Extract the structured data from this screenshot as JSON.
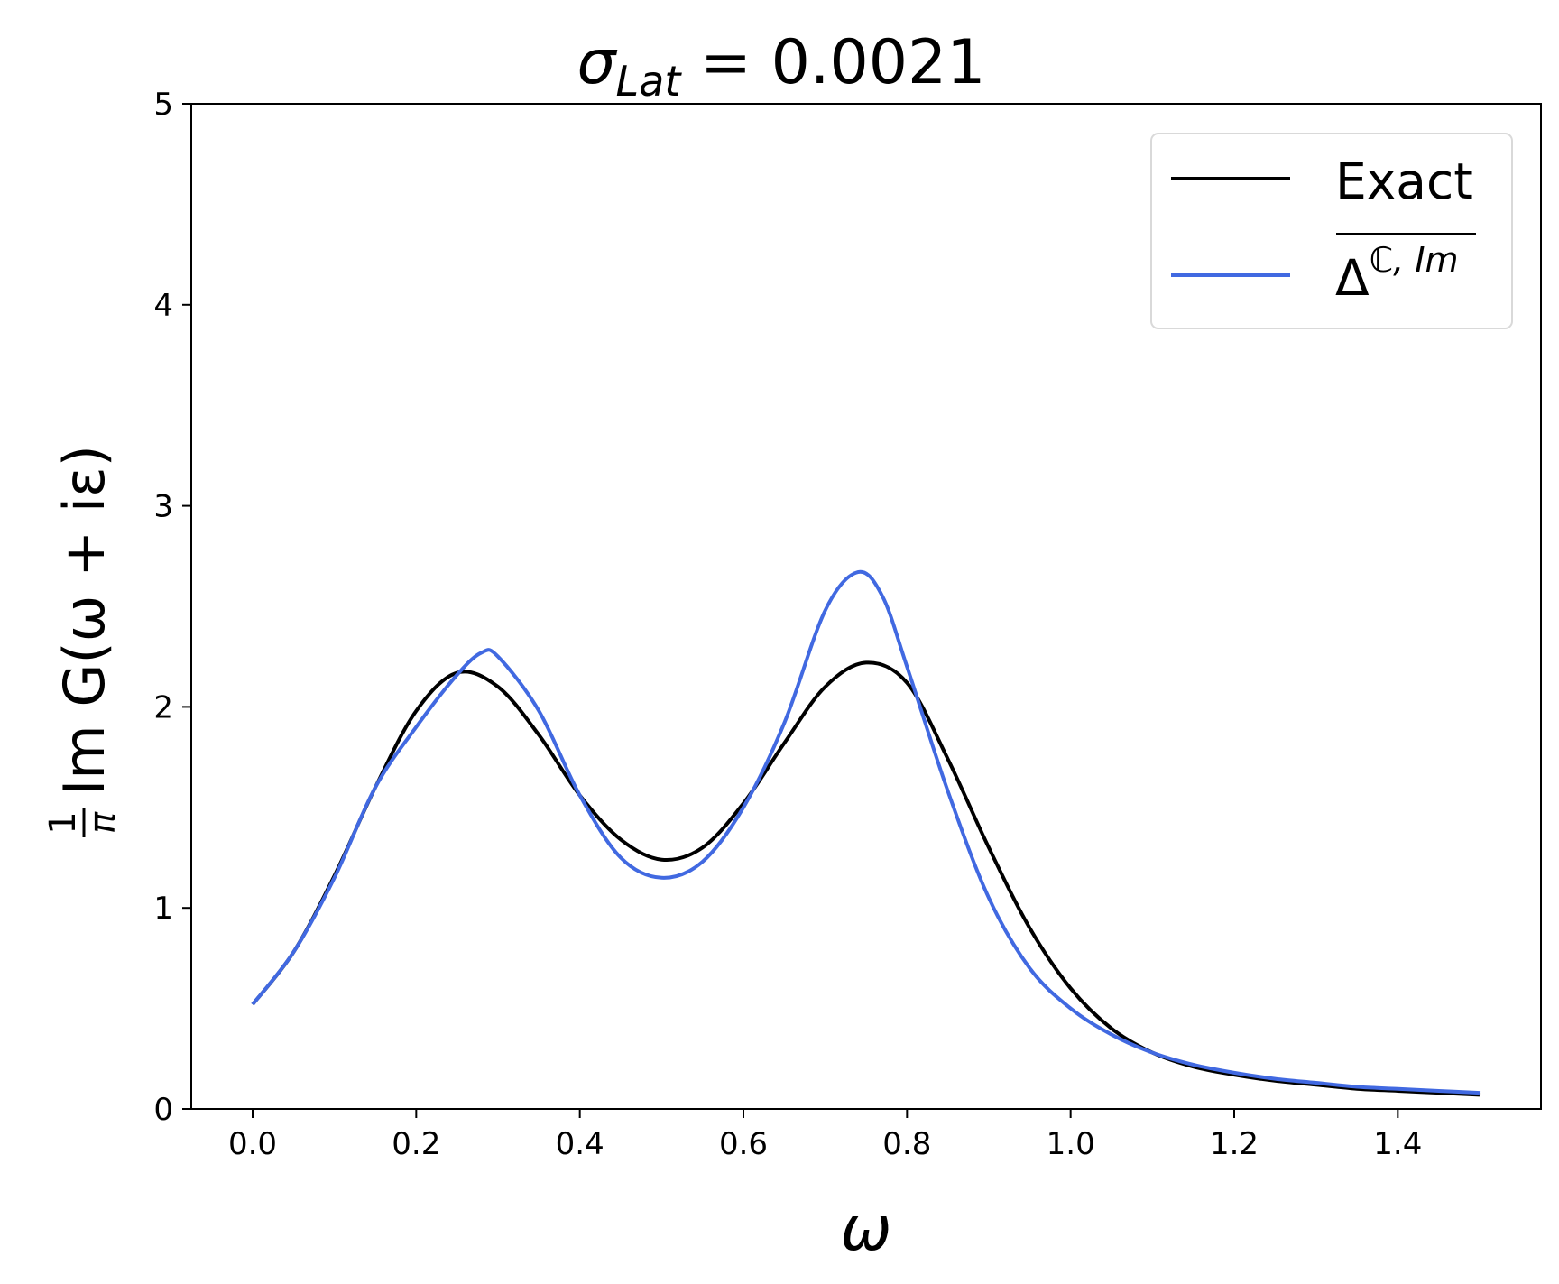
{
  "chart_data": {
    "type": "line",
    "title": {
      "main": "σ",
      "sub": "Lat",
      "rest": " = 0.0021"
    },
    "xlabel": "ω",
    "ylabel": {
      "frac_num": "1",
      "frac_den": "π",
      "rest": "Im G(ω + iε)"
    },
    "xlim": [
      -0.075,
      1.575
    ],
    "ylim": [
      0,
      5
    ],
    "xticks": [
      "0.0",
      "0.2",
      "0.4",
      "0.6",
      "0.8",
      "1.0",
      "1.2",
      "1.4"
    ],
    "yticks": [
      "0",
      "1",
      "2",
      "3",
      "4",
      "5"
    ],
    "grid": false,
    "legend_position": "upper right",
    "legend": [
      {
        "label": "Exact"
      },
      {
        "label_main": "Δ",
        "label_sup": "ℂ, Im"
      }
    ],
    "series": [
      {
        "name": "Exact",
        "color": "#000000",
        "x": [
          0.0,
          0.05,
          0.1,
          0.15,
          0.2,
          0.25,
          0.3,
          0.35,
          0.4,
          0.45,
          0.5,
          0.55,
          0.6,
          0.65,
          0.7,
          0.75,
          0.8,
          0.85,
          0.9,
          0.95,
          1.0,
          1.05,
          1.1,
          1.15,
          1.2,
          1.25,
          1.3,
          1.35,
          1.4,
          1.45,
          1.5
        ],
        "y": [
          0.52,
          0.78,
          1.16,
          1.6,
          1.98,
          2.17,
          2.1,
          1.86,
          1.56,
          1.34,
          1.24,
          1.3,
          1.52,
          1.82,
          2.1,
          2.22,
          2.12,
          1.74,
          1.3,
          0.9,
          0.6,
          0.4,
          0.28,
          0.21,
          0.17,
          0.14,
          0.12,
          0.1,
          0.09,
          0.08,
          0.07
        ]
      },
      {
        "name": "Δ ℂ, Im",
        "color": "#4169e1",
        "x": [
          0.0,
          0.05,
          0.1,
          0.15,
          0.2,
          0.25,
          0.28,
          0.3,
          0.35,
          0.4,
          0.45,
          0.5,
          0.55,
          0.6,
          0.65,
          0.7,
          0.74,
          0.77,
          0.8,
          0.85,
          0.9,
          0.95,
          1.0,
          1.05,
          1.1,
          1.15,
          1.2,
          1.25,
          1.3,
          1.35,
          1.4,
          1.45,
          1.5
        ],
        "y": [
          0.52,
          0.78,
          1.15,
          1.6,
          1.9,
          2.16,
          2.27,
          2.25,
          1.98,
          1.56,
          1.25,
          1.15,
          1.23,
          1.5,
          1.92,
          2.48,
          2.67,
          2.55,
          2.2,
          1.58,
          1.05,
          0.7,
          0.5,
          0.37,
          0.28,
          0.22,
          0.18,
          0.15,
          0.13,
          0.11,
          0.1,
          0.09,
          0.08
        ]
      }
    ]
  }
}
